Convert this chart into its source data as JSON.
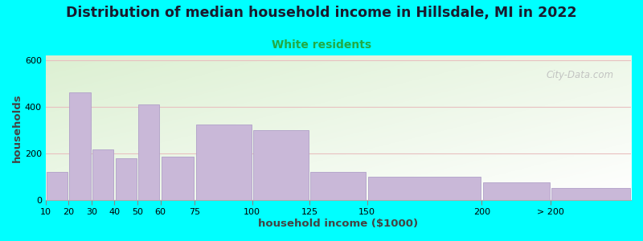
{
  "title": "Distribution of median household income in Hillsdale, MI in 2022",
  "subtitle": "White residents",
  "xlabel": "household income ($1000)",
  "ylabel": "households",
  "bar_color": "#c9b8d8",
  "bar_edge_color": "#b0a0c8",
  "ylim": [
    0,
    620
  ],
  "yticks": [
    0,
    200,
    400,
    600
  ],
  "background_color": "#00ffff",
  "title_fontsize": 12.5,
  "subtitle_fontsize": 10,
  "subtitle_color": "#22aa44",
  "axis_label_fontsize": 9.5,
  "watermark": "City-Data.com",
  "bar_lefts": [
    10,
    20,
    30,
    40,
    50,
    60,
    75,
    100,
    125,
    150,
    200,
    230
  ],
  "bar_rights": [
    20,
    30,
    40,
    50,
    60,
    75,
    100,
    125,
    150,
    200,
    230,
    265
  ],
  "bar_heights": [
    120,
    460,
    215,
    180,
    410,
    185,
    325,
    300,
    120,
    100,
    75,
    50
  ],
  "xtick_positions": [
    10,
    20,
    30,
    40,
    50,
    60,
    75,
    100,
    125,
    150,
    200,
    230
  ],
  "xtick_labels": [
    "10",
    "20",
    "30",
    "40",
    "50",
    "60",
    "75",
    "100",
    "125",
    "150",
    "200",
    "> 200"
  ],
  "xlim_left": 10,
  "xlim_right": 265
}
